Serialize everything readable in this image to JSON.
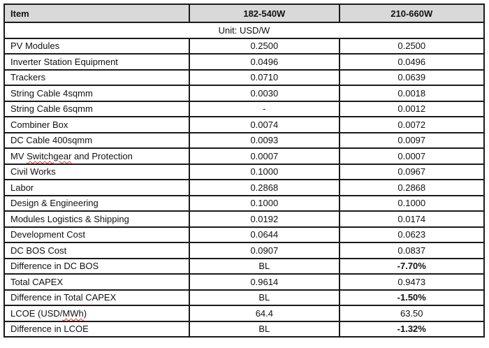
{
  "table": {
    "columns": [
      "Item",
      "182-540W",
      "210-660W"
    ],
    "unit_label": "Unit: USD/W",
    "rows": [
      {
        "item": "PV Modules",
        "v1": "0.2500",
        "v2": "0.2500"
      },
      {
        "item": "Inverter Station Equipment",
        "v1": "0.0496",
        "v2": "0.0496"
      },
      {
        "item": "Trackers",
        "v1": "0.0710",
        "v2": "0.0639"
      },
      {
        "item": "String Cable 4sqmm",
        "v1": "0.0030",
        "v2": "0.0018"
      },
      {
        "item": "String Cable 6sqmm",
        "v1": "-",
        "v2": "0.0012"
      },
      {
        "item": "Combiner Box",
        "v1": "0.0074",
        "v2": "0.0072"
      },
      {
        "item": "DC Cable 400sqmm",
        "v1": "0.0093",
        "v2": "0.0097"
      },
      {
        "item": "MV Switchgear and Protection",
        "v1": "0.0007",
        "v2": "0.0007",
        "squiggle": "Switchgear"
      },
      {
        "item": "Civil Works",
        "v1": "0.1000",
        "v2": "0.0967"
      },
      {
        "item": "Labor",
        "v1": "0.2868",
        "v2": "0.2868"
      },
      {
        "item": "Design & Engineering",
        "v1": "0.1000",
        "v2": "0.1000"
      },
      {
        "item": "Modules Logistics & Shipping",
        "v1": "0.0192",
        "v2": "0.0174"
      },
      {
        "item": "Development Cost",
        "v1": "0.0644",
        "v2": "0.0623"
      },
      {
        "item": "DC BOS Cost",
        "v1": "0.0907",
        "v2": "0.0837"
      },
      {
        "item": "Difference in DC BOS",
        "v1": "BL",
        "v2": "-7.70%",
        "bold2": true
      },
      {
        "item": "Total CAPEX",
        "v1": "0.9614",
        "v2": "0.9473"
      },
      {
        "item": "Difference in Total CAPEX",
        "v1": "BL",
        "v2": "-1.50%",
        "bold2": true
      },
      {
        "item": "LCOE (USD/MWh)",
        "v1": "64.4",
        "v2": "63.50",
        "squiggle": "MWh"
      },
      {
        "item": "Difference in LCOE",
        "v1": "BL",
        "v2": "-1.32%",
        "bold2": true
      }
    ],
    "colors": {
      "header_bg": "#d9d9d9",
      "border": "#1a1a1a",
      "squiggle": "#e0362a",
      "text": "#111111"
    }
  }
}
